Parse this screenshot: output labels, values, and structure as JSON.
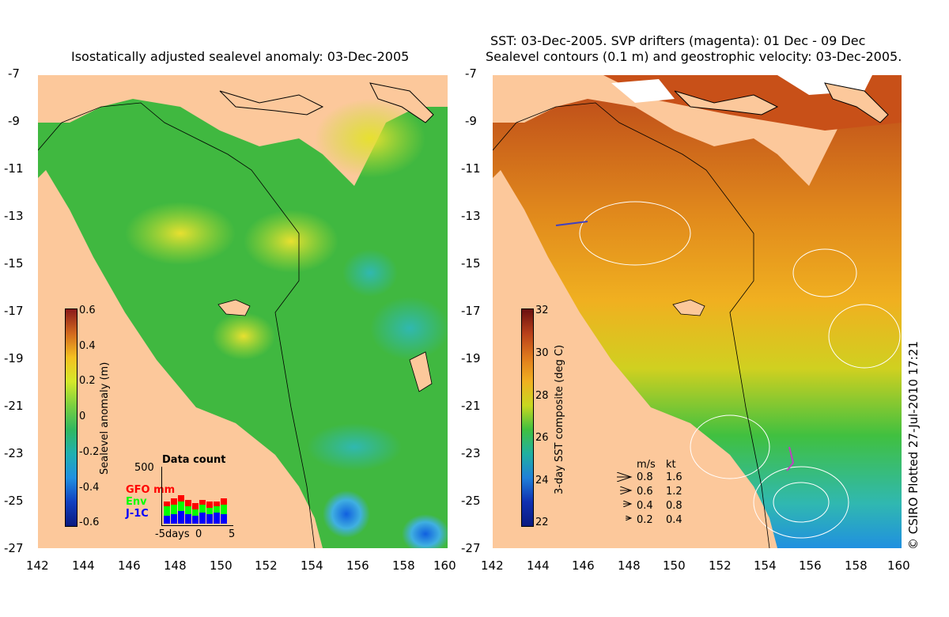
{
  "left_panel": {
    "title": "Isostatically adjusted sealevel anomaly: 03-Dec-2005",
    "lat_ticks": [
      "-7",
      "-9",
      "-11",
      "-13",
      "-15",
      "-17",
      "-19",
      "-21",
      "-23",
      "-25",
      "-27"
    ],
    "lon_ticks": [
      "142",
      "144",
      "146",
      "148",
      "150",
      "152",
      "154",
      "156",
      "158",
      "160"
    ],
    "colorbar": {
      "label": "Sealevel anomaly (m)",
      "ticks": [
        "0.6",
        "0.4",
        "0.2",
        "0",
        "-0.2",
        "-0.4",
        "-0.6"
      ],
      "range": [
        -0.6,
        0.6
      ]
    },
    "data_count": {
      "title": "Data count",
      "ymax": "500",
      "x_ticks": [
        "-5days",
        "0",
        "5"
      ],
      "legend": [
        {
          "label": "GFO mm",
          "color": "#ff0000"
        },
        {
          "label": "Env",
          "color": "#00ff00"
        },
        {
          "label": "J-1C",
          "color": "#0000ff"
        }
      ]
    }
  },
  "right_panel": {
    "title_line1": "SST: 03-Dec-2005. SVP drifters (magenta): 01 Dec - 09 Dec",
    "title_line2": "Sealevel contours (0.1 m) and geostrophic velocity: 03-Dec-2005.",
    "lat_ticks": [
      "-7",
      "-9",
      "-11",
      "-13",
      "-15",
      "-17",
      "-19",
      "-21",
      "-23",
      "-25",
      "-27"
    ],
    "lon_ticks": [
      "142",
      "144",
      "146",
      "148",
      "150",
      "152",
      "154",
      "156",
      "158",
      "160"
    ],
    "colorbar": {
      "label": "3-day SST composite (deg C)",
      "ticks": [
        "32",
        "30",
        "28",
        "26",
        "24",
        "22"
      ],
      "range": [
        22,
        32
      ]
    },
    "velocity_legend": {
      "header_ms": "m/s",
      "header_kt": "kt",
      "rows": [
        {
          "ms": "0.8",
          "kt": "1.6"
        },
        {
          "ms": "0.6",
          "kt": "1.2"
        },
        {
          "ms": "0.4",
          "kt": "0.8"
        },
        {
          "ms": "0.2",
          "kt": "0.4"
        }
      ]
    }
  },
  "credit": "© CSIRO Plotted 27-Jul-2010 17:21",
  "colors": {
    "land": "#fcc89b",
    "ssh_mid": "#4fbf3a",
    "sst_warm": "#e8901c"
  }
}
